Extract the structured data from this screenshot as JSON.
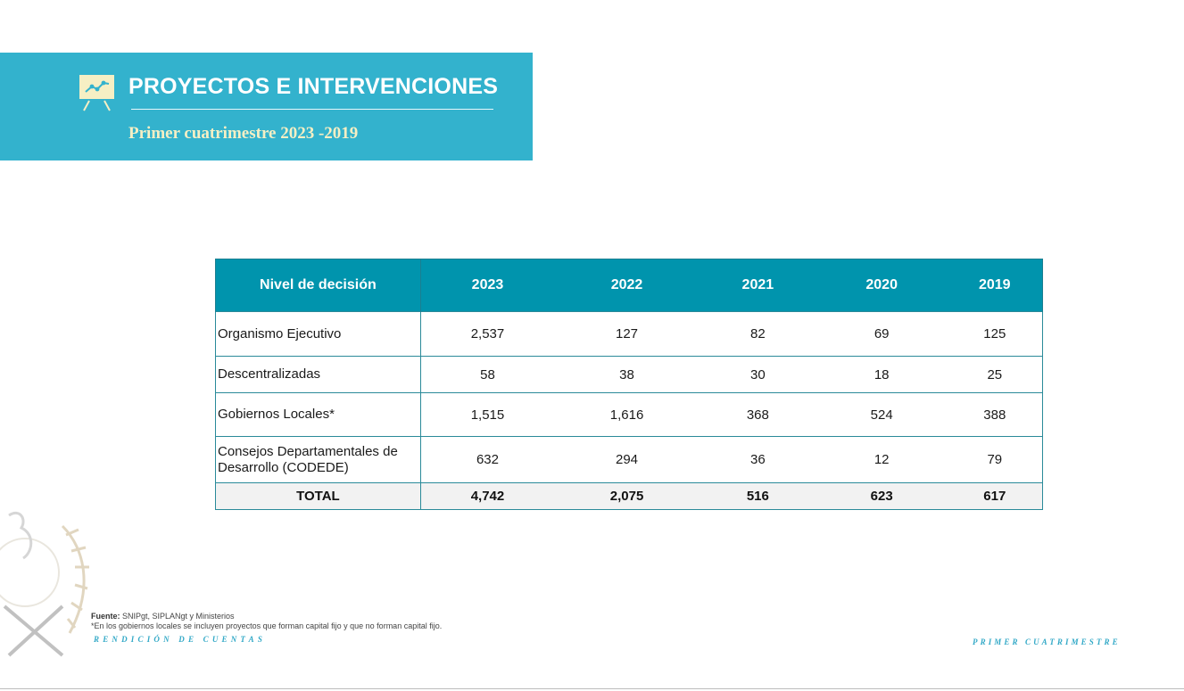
{
  "header": {
    "title": "PROYECTOS E INTERVENCIONES",
    "subtitle": "Primer cuatrimestre 2023 -2019",
    "icon": "presentation-chart-icon"
  },
  "table": {
    "columns": [
      "Nivel de decisión",
      "2023",
      "2022",
      "2021",
      "2020",
      "2019"
    ],
    "rows": [
      {
        "label": "Organismo Ejecutivo",
        "values": [
          "2,537",
          "127",
          "82",
          "69",
          "125"
        ]
      },
      {
        "label": "Descentralizadas",
        "values": [
          "58",
          "38",
          "30",
          "18",
          "25"
        ]
      },
      {
        "label": "Gobiernos Locales*",
        "values": [
          "1,515",
          "1,616",
          "368",
          "524",
          "388"
        ]
      },
      {
        "label": "Consejos Departamentales de Desarrollo (CODEDE)",
        "values": [
          "632",
          "294",
          "36",
          "12",
          "79"
        ]
      }
    ],
    "total": {
      "label": "TOTAL",
      "values": [
        "4,742",
        "2,075",
        "516",
        "623",
        "617"
      ]
    }
  },
  "footer": {
    "source_label": "Fuente:",
    "source_text": "SNIPgt, SIPLANgt  y Ministerios",
    "note": "*En los gobiernos locales se incluyen proyectos que forman capital fijo y que no forman capital fijo.",
    "left_tag": "RENDICIÓN DE CUENTAS",
    "right_tag": "PRIMER CUATRIMESTRE",
    "emblem": "guatemala-coat-of-arms-watermark"
  },
  "colors": {
    "header_band": "#33b2cd",
    "table_header": "#0094ad",
    "subtitle": "#f6efc4",
    "footer_accent": "#33a9c7"
  }
}
